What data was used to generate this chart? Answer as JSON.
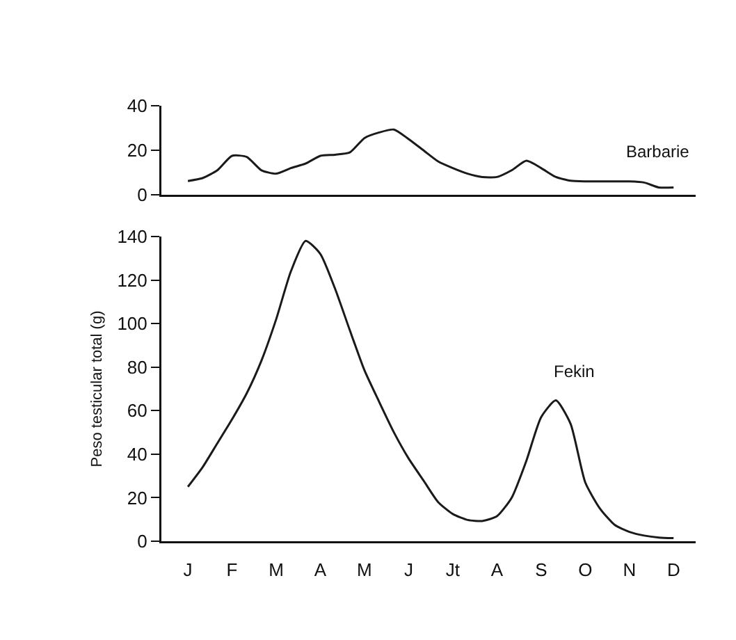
{
  "chart_data": [
    {
      "type": "line",
      "tick_labels": "y",
      "ylim": [
        0,
        40
      ],
      "yticks": [
        0,
        20,
        40
      ],
      "categories": [
        null,
        null,
        null,
        null,
        null,
        null,
        null,
        null,
        null,
        null,
        null,
        null,
        null,
        null,
        null,
        null,
        null,
        null,
        null,
        null,
        null,
        null,
        null,
        null,
        null,
        null,
        null,
        null,
        null,
        null,
        null,
        null,
        null,
        null,
        null,
        null
      ],
      "grid": false,
      "legend": false,
      "marker": "none",
      "line_style": "solid",
      "series": [
        {
          "name": "Barbarie",
          "color": "#1a1a1a",
          "values": [
            null,
            6.2,
            7.5,
            11,
            17.5,
            17,
            11,
            9.5,
            12,
            14,
            17.5,
            18,
            19,
            25.5,
            28,
            29.3,
            25,
            20,
            15,
            12,
            9.5,
            8,
            8,
            11,
            15.3,
            12,
            8,
            6.3,
            6,
            6,
            6,
            6,
            5.5,
            3.3,
            3.3,
            null
          ]
        }
      ]
    },
    {
      "type": "line",
      "ylabel": "Peso testicular total (g)",
      "ylim": [
        0,
        140
      ],
      "yticks": [
        0,
        20,
        40,
        60,
        80,
        100,
        120,
        140
      ],
      "categories": [
        null,
        "J",
        null,
        null,
        "F",
        null,
        null,
        "M",
        null,
        null,
        "A",
        null,
        null,
        "M",
        null,
        null,
        "J",
        null,
        null,
        "Jt",
        null,
        null,
        "A",
        null,
        null,
        "S",
        null,
        null,
        "O",
        null,
        null,
        "N",
        null,
        null,
        "D",
        null
      ],
      "grid": false,
      "legend": false,
      "marker": "none",
      "line_style": "solid",
      "series": [
        {
          "name": "Fekin",
          "color": "#1a1a1a",
          "values": [
            null,
            25,
            34,
            45,
            56,
            68,
            83,
            102,
            124,
            138,
            132,
            116,
            97,
            78.5,
            64,
            50,
            38,
            28,
            18,
            12.5,
            9.8,
            9.3,
            11.5,
            20,
            37,
            57,
            64.7,
            54,
            27,
            15,
            7.5,
            4.3,
            2.6,
            1.7,
            1.4,
            null
          ]
        }
      ]
    }
  ]
}
